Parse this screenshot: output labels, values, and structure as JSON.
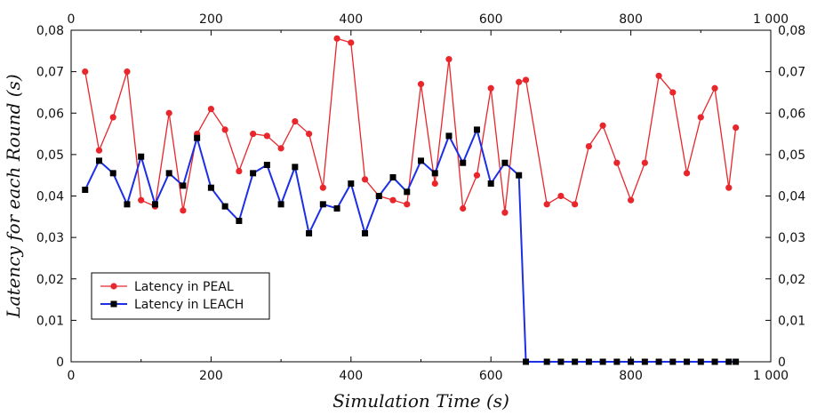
{
  "chart_data": {
    "type": "line",
    "title": "",
    "xlabel": "Simulation Time (s)",
    "ylabel": "Latency for each Round (s)",
    "xlim": [
      0,
      1000
    ],
    "ylim": [
      0,
      0.08
    ],
    "x_ticks": [
      0,
      200,
      400,
      600,
      800,
      1000
    ],
    "x_tick_labels": [
      "0",
      "200",
      "400",
      "600",
      "800",
      "1 000"
    ],
    "y_ticks": [
      0,
      0.01,
      0.02,
      0.03,
      0.04,
      0.05,
      0.06,
      0.07,
      0.08
    ],
    "y_tick_labels": [
      "0",
      "0,01",
      "0,02",
      "0,03",
      "0,04",
      "0,05",
      "0,06",
      "0,07",
      "0,08"
    ],
    "grid": false,
    "legend_position": "lower-left",
    "series": [
      {
        "name": "Latency in PEAL",
        "color": "#e8262b",
        "marker": "circle",
        "x": [
          20,
          40,
          60,
          80,
          100,
          120,
          140,
          160,
          180,
          200,
          220,
          240,
          260,
          280,
          300,
          320,
          340,
          360,
          380,
          400,
          420,
          440,
          460,
          480,
          500,
          520,
          540,
          560,
          580,
          600,
          620,
          640,
          650,
          680,
          700,
          720,
          740,
          760,
          780,
          800,
          820,
          840,
          860,
          880,
          900,
          920,
          940,
          950
        ],
        "y": [
          0.07,
          0.051,
          0.059,
          0.07,
          0.039,
          0.0375,
          0.06,
          0.0365,
          0.055,
          0.061,
          0.056,
          0.046,
          0.055,
          0.0545,
          0.0515,
          0.058,
          0.055,
          0.042,
          0.078,
          0.077,
          0.044,
          0.04,
          0.039,
          0.038,
          0.067,
          0.043,
          0.073,
          0.037,
          0.045,
          0.066,
          0.036,
          0.0675,
          0.068,
          0.038,
          0.04,
          0.038,
          0.052,
          0.057,
          0.048,
          0.039,
          0.048,
          0.069,
          0.065,
          0.0455,
          0.059,
          0.066,
          0.042,
          0.0565
        ]
      },
      {
        "name": "Latency in LEACH",
        "color": "#1c2fe6",
        "marker": "square",
        "x": [
          20,
          40,
          60,
          80,
          100,
          120,
          140,
          160,
          180,
          200,
          220,
          240,
          260,
          280,
          300,
          320,
          340,
          360,
          380,
          400,
          420,
          440,
          460,
          480,
          500,
          520,
          540,
          560,
          580,
          600,
          620,
          640,
          650,
          680,
          700,
          720,
          740,
          760,
          780,
          800,
          820,
          840,
          860,
          880,
          900,
          920,
          940,
          950
        ],
        "y": [
          0.0415,
          0.0485,
          0.0455,
          0.038,
          0.0495,
          0.038,
          0.0455,
          0.0425,
          0.054,
          0.042,
          0.0375,
          0.034,
          0.0455,
          0.0475,
          0.038,
          0.047,
          0.031,
          0.038,
          0.037,
          0.043,
          0.031,
          0.04,
          0.0445,
          0.041,
          0.0485,
          0.0455,
          0.0545,
          0.048,
          0.056,
          0.043,
          0.048,
          0.045,
          0,
          0,
          0,
          0,
          0,
          0,
          0,
          0,
          0,
          0,
          0,
          0,
          0,
          0,
          0,
          0
        ]
      }
    ]
  }
}
